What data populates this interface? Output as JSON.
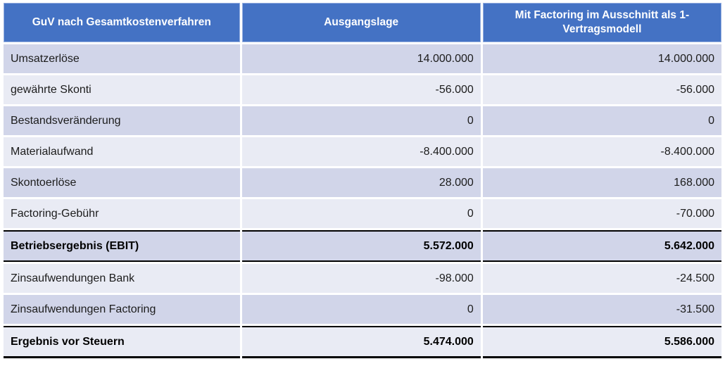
{
  "chart_data": {
    "type": "table",
    "columns": [
      "GuV nach Gesamtkostenverfahren",
      "Ausgangslage",
      "Mit Factoring im Ausschnitt als 1-Vertragsmodell"
    ],
    "rows": [
      {
        "label": "Umsatzerlöse",
        "ausgangslage": 14000000,
        "mit_factoring": 14000000
      },
      {
        "label": "gewährte Skonti",
        "ausgangslage": -56000,
        "mit_factoring": -56000
      },
      {
        "label": "Bestandsveränderung",
        "ausgangslage": 0,
        "mit_factoring": 0
      },
      {
        "label": "Materialaufwand",
        "ausgangslage": -8400000,
        "mit_factoring": -8400000
      },
      {
        "label": "Skontoerlöse",
        "ausgangslage": 28000,
        "mit_factoring": 168000
      },
      {
        "label": "Factoring-Gebühr",
        "ausgangslage": 0,
        "mit_factoring": -70000
      },
      {
        "label": "Betriebsergebnis (EBIT)",
        "ausgangslage": 5572000,
        "mit_factoring": 5642000
      },
      {
        "label": "Zinsaufwendungen Bank",
        "ausgangslage": -98000,
        "mit_factoring": -24500
      },
      {
        "label": "Zinsaufwendungen Factoring",
        "ausgangslage": 0,
        "mit_factoring": -31500
      },
      {
        "label": "Ergebnis vor Steuern",
        "ausgangslage": 5474000,
        "mit_factoring": 5586000
      }
    ]
  },
  "table": {
    "header": {
      "col1": "GuV nach Gesamtkostenverfahren",
      "col2": "Ausgangslage",
      "col3": "Mit Factoring im Ausschnitt als 1-Vertragsmodell"
    },
    "rows": [
      {
        "label": "Umsatzerlöse",
        "values": [
          "14.000.000",
          "14.000.000"
        ],
        "bold": false,
        "top_border": false,
        "bottom_border": "none"
      },
      {
        "label": "gewährte Skonti",
        "values": [
          "-56.000",
          "-56.000"
        ],
        "bold": false,
        "top_border": false,
        "bottom_border": "none"
      },
      {
        "label": "Bestandsveränderung",
        "values": [
          "0",
          "0"
        ],
        "bold": false,
        "top_border": false,
        "bottom_border": "none"
      },
      {
        "label": "Materialaufwand",
        "values": [
          "-8.400.000",
          "-8.400.000"
        ],
        "bold": false,
        "top_border": false,
        "bottom_border": "none"
      },
      {
        "label": "Skontoerlöse",
        "values": [
          "28.000",
          "168.000"
        ],
        "bold": false,
        "top_border": false,
        "bottom_border": "none"
      },
      {
        "label": "Factoring-Gebühr",
        "values": [
          "0",
          "-70.000"
        ],
        "bold": false,
        "top_border": false,
        "bottom_border": "none"
      },
      {
        "label": "Betriebsergebnis (EBIT)",
        "values": [
          "5.572.000",
          "5.642.000"
        ],
        "bold": true,
        "top_border": true,
        "bottom_border": "thin"
      },
      {
        "label": "Zinsaufwendungen Bank",
        "values": [
          "-98.000",
          "-24.500"
        ],
        "bold": false,
        "top_border": false,
        "bottom_border": "none"
      },
      {
        "label": "Zinsaufwendungen Factoring",
        "values": [
          "0",
          "-31.500"
        ],
        "bold": false,
        "top_border": false,
        "bottom_border": "none"
      },
      {
        "label": "Ergebnis vor Steuern",
        "values": [
          "5.474.000",
          "5.586.000"
        ],
        "bold": true,
        "top_border": true,
        "bottom_border": "thick"
      }
    ]
  },
  "colors": {
    "header_bg": "#4472c4",
    "header_text": "#ffffff",
    "header_border": "#96afe0",
    "row_dark": "#d1d5e9",
    "row_light": "#e9ebf4",
    "body_text": "#1c1c1c",
    "divider": "#000000"
  }
}
